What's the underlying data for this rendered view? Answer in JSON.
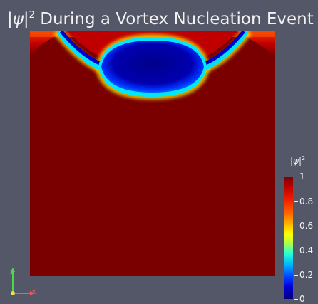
{
  "title": {
    "symbol": "|ψ|",
    "superscript": "2",
    "rest": " During a Vortex Nucleation Event"
  },
  "legend": {
    "symbol": "|ψ|",
    "superscript": "2",
    "ticks": [
      "1",
      "0.8",
      "0.6",
      "0.4",
      "0.2",
      "0"
    ]
  },
  "orientation_axes": {
    "z_label": "z",
    "x_label": "x"
  },
  "colors": {
    "background": "#545768",
    "field_high": "#7a0000",
    "field_low": "#0000a8",
    "z_axis": "#4cd64c",
    "x_axis": "#ff5555",
    "y_axis": "#f0e040"
  }
}
